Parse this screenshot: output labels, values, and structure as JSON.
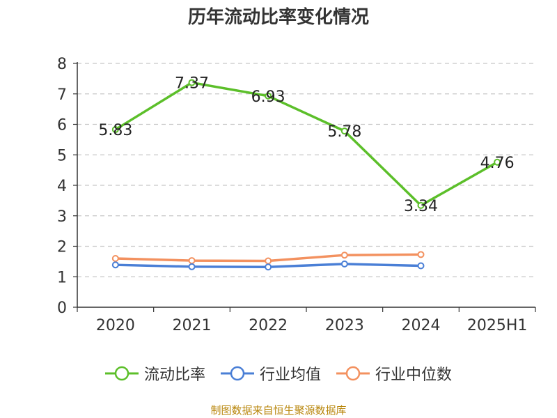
{
  "chart_data": {
    "type": "line",
    "title": "历年流动比率变化情况",
    "categories": [
      "2020",
      "2021",
      "2022",
      "2023",
      "2024",
      "2025H1"
    ],
    "ylim": [
      0,
      8
    ],
    "yticks": [
      0,
      1,
      2,
      3,
      4,
      5,
      6,
      7,
      8
    ],
    "grid": true,
    "legend_position": "bottom",
    "series": [
      {
        "name": "流动比率",
        "color": "#5cbf2a",
        "values": [
          5.83,
          7.37,
          6.93,
          5.78,
          3.34,
          4.76
        ],
        "labels": [
          "5.83",
          "7.37",
          "6.93",
          "5.78",
          "3.34",
          "4.76"
        ]
      },
      {
        "name": "行业均值",
        "color": "#4a7fd6",
        "values": [
          1.39,
          1.33,
          1.32,
          1.42,
          1.36,
          null
        ]
      },
      {
        "name": "行业中位数",
        "color": "#f3915f",
        "values": [
          1.6,
          1.53,
          1.52,
          1.71,
          1.73,
          null
        ]
      }
    ]
  },
  "footer": {
    "source": "制图数据来自恒生聚源数据库"
  }
}
